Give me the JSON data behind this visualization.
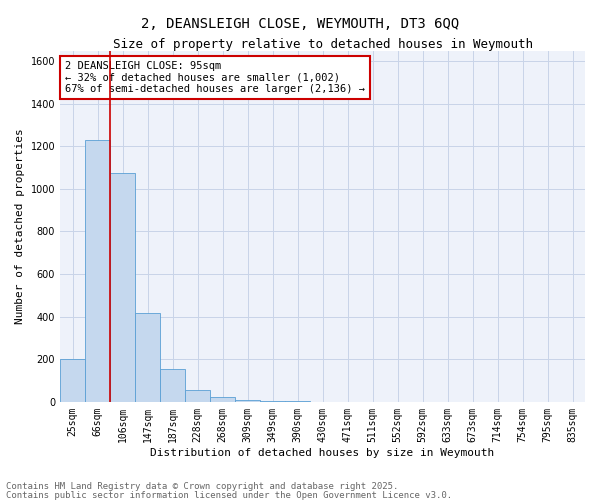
{
  "title_line1": "2, DEANSLEIGH CLOSE, WEYMOUTH, DT3 6QQ",
  "title_line2": "Size of property relative to detached houses in Weymouth",
  "xlabel": "Distribution of detached houses by size in Weymouth",
  "ylabel": "Number of detached properties",
  "categories": [
    "25sqm",
    "66sqm",
    "106sqm",
    "147sqm",
    "187sqm",
    "228sqm",
    "268sqm",
    "309sqm",
    "349sqm",
    "390sqm",
    "430sqm",
    "471sqm",
    "511sqm",
    "552sqm",
    "592sqm",
    "633sqm",
    "673sqm",
    "714sqm",
    "754sqm",
    "795sqm",
    "835sqm"
  ],
  "values": [
    200,
    1230,
    1075,
    415,
    155,
    55,
    25,
    10,
    5,
    2,
    1,
    0,
    0,
    0,
    0,
    0,
    0,
    0,
    0,
    0,
    0
  ],
  "bar_color": "#c5d8ee",
  "bar_edge_color": "#5a9fd4",
  "annotation_text": "2 DEANSLEIGH CLOSE: 95sqm\n← 32% of detached houses are smaller (1,002)\n67% of semi-detached houses are larger (2,136) →",
  "vline_position": 1.5,
  "vline_color": "#cc0000",
  "ylim_max": 1650,
  "yticks": [
    0,
    200,
    400,
    600,
    800,
    1000,
    1200,
    1400,
    1600
  ],
  "footnote1": "Contains HM Land Registry data © Crown copyright and database right 2025.",
  "footnote2": "Contains public sector information licensed under the Open Government Licence v3.0.",
  "grid_color": "#c8d4e8",
  "bg_color": "#eef2fa",
  "title_fs": 10,
  "subtitle_fs": 9,
  "xlabel_fs": 8,
  "ylabel_fs": 8,
  "tick_fs": 7,
  "annot_fs": 7.5,
  "footnote_fs": 6.5
}
